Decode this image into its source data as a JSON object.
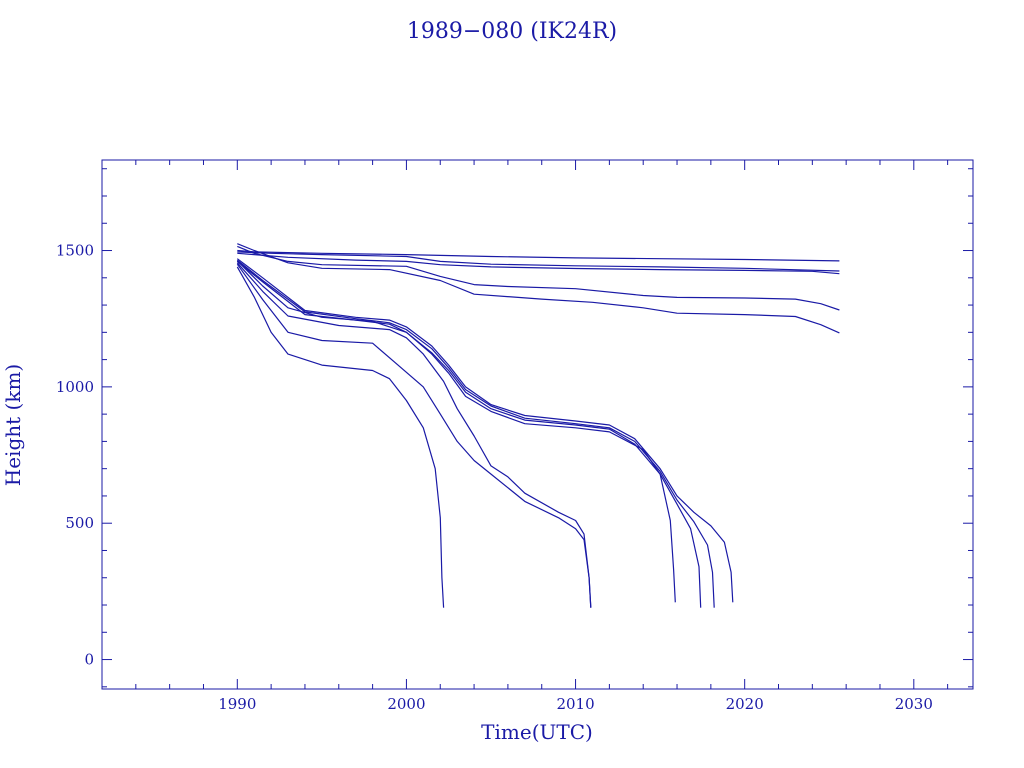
{
  "chart_data": {
    "type": "line",
    "title": "1989−080 (IK24R)",
    "xlabel": "Time(UTC)",
    "ylabel": "Height (km)",
    "xlim": [
      1982,
      2033.5
    ],
    "ylim": [
      -108,
      1832
    ],
    "x_ticks": [
      1990,
      2000,
      2010,
      2020,
      2030
    ],
    "y_ticks": [
      0,
      500,
      1000,
      1500
    ],
    "grid": false,
    "line_color": "#1a1aa6",
    "series": [
      {
        "values": [
          [
            1990.0,
            1500
          ],
          [
            1991,
            1495
          ],
          [
            1995,
            1490
          ],
          [
            2000,
            1485
          ],
          [
            2005,
            1478
          ],
          [
            2010,
            1473
          ],
          [
            2015,
            1470
          ],
          [
            2020,
            1467
          ],
          [
            2025.6,
            1462
          ]
        ]
      },
      {
        "values": [
          [
            1990.0,
            1495
          ],
          [
            1992,
            1490
          ],
          [
            1995,
            1485
          ],
          [
            2000,
            1478
          ],
          [
            2002,
            1460
          ],
          [
            2005,
            1450
          ],
          [
            2010,
            1444
          ],
          [
            2015,
            1440
          ],
          [
            2020,
            1435
          ],
          [
            2025.6,
            1425
          ]
        ]
      },
      {
        "values": [
          [
            1990.0,
            1490
          ],
          [
            1991,
            1485
          ],
          [
            1993,
            1475
          ],
          [
            1997,
            1465
          ],
          [
            2000,
            1460
          ],
          [
            2002,
            1448
          ],
          [
            2005,
            1440
          ],
          [
            2010,
            1434
          ],
          [
            2015,
            1430
          ],
          [
            2020,
            1427
          ],
          [
            2024,
            1424
          ],
          [
            2025.6,
            1415
          ]
        ]
      },
      {
        "values": [
          [
            1990.0,
            1515
          ],
          [
            1991,
            1490
          ],
          [
            1993,
            1460
          ],
          [
            1995,
            1448
          ],
          [
            2000,
            1442
          ],
          [
            2002,
            1405
          ],
          [
            2004,
            1375
          ],
          [
            2006,
            1368
          ],
          [
            2010,
            1360
          ],
          [
            2014,
            1335
          ],
          [
            2016,
            1328
          ],
          [
            2020,
            1326
          ],
          [
            2023,
            1322
          ],
          [
            2024.5,
            1305
          ],
          [
            2025.6,
            1282
          ]
        ]
      },
      {
        "values": [
          [
            1990.0,
            1525
          ],
          [
            1991,
            1500
          ],
          [
            1993,
            1455
          ],
          [
            1995,
            1435
          ],
          [
            1999,
            1430
          ],
          [
            2002,
            1390
          ],
          [
            2004,
            1340
          ],
          [
            2008,
            1322
          ],
          [
            2011,
            1310
          ],
          [
            2014,
            1290
          ],
          [
            2016,
            1270
          ],
          [
            2020,
            1265
          ],
          [
            2023,
            1258
          ],
          [
            2024.5,
            1228
          ],
          [
            2025.6,
            1198
          ]
        ]
      },
      {
        "values": [
          [
            1990.0,
            1470
          ],
          [
            1991.5,
            1400
          ],
          [
            1994,
            1280
          ],
          [
            1997,
            1255
          ],
          [
            1999,
            1245
          ],
          [
            2000,
            1220
          ],
          [
            2001.5,
            1150
          ],
          [
            2002.5,
            1080
          ],
          [
            2003.5,
            1000
          ],
          [
            2005,
            935
          ],
          [
            2007,
            895
          ],
          [
            2010,
            875
          ],
          [
            2012,
            860
          ],
          [
            2013.5,
            810
          ],
          [
            2015,
            700
          ],
          [
            2016,
            600
          ],
          [
            2017,
            540
          ],
          [
            2018,
            490
          ],
          [
            2018.8,
            430
          ],
          [
            2019.2,
            320
          ],
          [
            2019.3,
            210
          ]
        ]
      },
      {
        "values": [
          [
            1990.0,
            1465
          ],
          [
            1991.5,
            1390
          ],
          [
            1994,
            1275
          ],
          [
            1997,
            1250
          ],
          [
            1999,
            1235
          ],
          [
            2000,
            1210
          ],
          [
            2001.5,
            1140
          ],
          [
            2002.5,
            1070
          ],
          [
            2003.5,
            990
          ],
          [
            2005,
            930
          ],
          [
            2007,
            885
          ],
          [
            2010,
            865
          ],
          [
            2012,
            850
          ],
          [
            2013.5,
            800
          ],
          [
            2015,
            690
          ],
          [
            2016,
            585
          ],
          [
            2017,
            505
          ],
          [
            2017.8,
            420
          ],
          [
            2018.1,
            320
          ],
          [
            2018.2,
            190
          ]
        ]
      },
      {
        "values": [
          [
            1990.0,
            1460
          ],
          [
            1991.5,
            1385
          ],
          [
            1994,
            1265
          ],
          [
            1997,
            1245
          ],
          [
            1999,
            1230
          ],
          [
            2000,
            1200
          ],
          [
            2001.5,
            1125
          ],
          [
            2002.5,
            1060
          ],
          [
            2003.5,
            980
          ],
          [
            2005,
            920
          ],
          [
            2007,
            878
          ],
          [
            2010,
            860
          ],
          [
            2012,
            845
          ],
          [
            2013.5,
            790
          ],
          [
            2015,
            680
          ],
          [
            2016,
            570
          ],
          [
            2016.8,
            480
          ],
          [
            2017.3,
            340
          ],
          [
            2017.4,
            190
          ]
        ]
      },
      {
        "values": [
          [
            1990.0,
            1462
          ],
          [
            1991.5,
            1370
          ],
          [
            1993,
            1290
          ],
          [
            1995,
            1255
          ],
          [
            1998,
            1240
          ],
          [
            2000,
            1200
          ],
          [
            2001.5,
            1120
          ],
          [
            2002.5,
            1050
          ],
          [
            2003.5,
            965
          ],
          [
            2005,
            910
          ],
          [
            2007,
            865
          ],
          [
            2010,
            850
          ],
          [
            2012,
            835
          ],
          [
            2014,
            770
          ],
          [
            2015,
            680
          ],
          [
            2015.6,
            510
          ],
          [
            2015.8,
            330
          ],
          [
            2015.9,
            210
          ]
        ]
      },
      {
        "values": [
          [
            1990.0,
            1455
          ],
          [
            1991.5,
            1350
          ],
          [
            1993,
            1260
          ],
          [
            1996,
            1225
          ],
          [
            1999,
            1210
          ],
          [
            2000,
            1180
          ],
          [
            2001,
            1120
          ],
          [
            2002.2,
            1020
          ],
          [
            2003,
            920
          ],
          [
            2004,
            820
          ],
          [
            2005,
            710
          ],
          [
            2006,
            670
          ],
          [
            2007,
            610
          ],
          [
            2009,
            540
          ],
          [
            2010,
            510
          ],
          [
            2010.5,
            460
          ],
          [
            2010.8,
            300
          ],
          [
            2010.9,
            190
          ]
        ]
      },
      {
        "values": [
          [
            1990.0,
            1450
          ],
          [
            1991.5,
            1320
          ],
          [
            1993,
            1200
          ],
          [
            1995,
            1170
          ],
          [
            1998,
            1160
          ],
          [
            1999.5,
            1080
          ],
          [
            2001,
            1000
          ],
          [
            2002,
            900
          ],
          [
            2003,
            800
          ],
          [
            2004,
            730
          ],
          [
            2005,
            680
          ],
          [
            2007,
            580
          ],
          [
            2009,
            520
          ],
          [
            2010,
            480
          ],
          [
            2010.5,
            440
          ],
          [
            2010.8,
            300
          ],
          [
            2010.9,
            190
          ]
        ]
      },
      {
        "values": [
          [
            1990.0,
            1440
          ],
          [
            1991,
            1330
          ],
          [
            1992,
            1200
          ],
          [
            1993,
            1120
          ],
          [
            1995,
            1080
          ],
          [
            1998,
            1060
          ],
          [
            1999,
            1030
          ],
          [
            2000,
            950
          ],
          [
            2001,
            850
          ],
          [
            2001.7,
            700
          ],
          [
            2002,
            520
          ],
          [
            2002.1,
            300
          ],
          [
            2002.2,
            190
          ]
        ]
      }
    ]
  }
}
